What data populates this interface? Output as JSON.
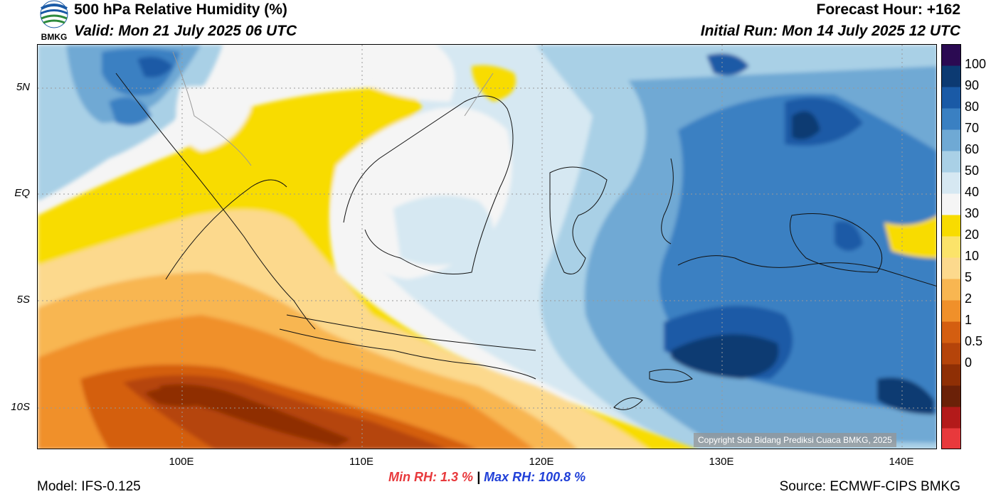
{
  "header": {
    "title": "500 hPa Relative Humidity (%)",
    "valid": "Valid: Mon 21 July 2025 06 UTC",
    "forecast_hour": "Forecast Hour: +162",
    "initial_run": "Initial Run: Mon 14 July 2025 12 UTC"
  },
  "logo": {
    "text": "BMKG",
    "icon": "bmkg-logo-icon"
  },
  "map": {
    "lat_labels": [
      "5N",
      "EQ",
      "5S",
      "10S"
    ],
    "lon_labels": [
      "100E",
      "110E",
      "120E",
      "130E",
      "140E"
    ],
    "copyright": "Copyright Sub Bidang Prediksi Cuaca BMKG, 2025"
  },
  "colorbar": {
    "labels": [
      "100",
      "90",
      "80",
      "70",
      "60",
      "50",
      "40",
      "30",
      "20",
      "10",
      "5",
      "2",
      "1",
      "0.5",
      "0"
    ],
    "colors": [
      "#e8393c",
      "#b31a1a",
      "#6b2108",
      "#8f2f05",
      "#b5440a",
      "#d45e10",
      "#f0902a",
      "#f8b651",
      "#fcd98d",
      "#fbe36a",
      "#f8dc00",
      "#f5f5f5",
      "#d6e8f2",
      "#a9d0e6",
      "#6fa9d4",
      "#3a80c2",
      "#1a5aa6",
      "#0c3a72",
      "#2b0a52"
    ]
  },
  "stats": {
    "min_label": "Min RH:   1.3 %",
    "sep": "|",
    "max_label": "Max RH: 100.8 %"
  },
  "footer": {
    "model": "Model: IFS-0.125",
    "source": "Source: ECMWF-CIPS BMKG"
  }
}
